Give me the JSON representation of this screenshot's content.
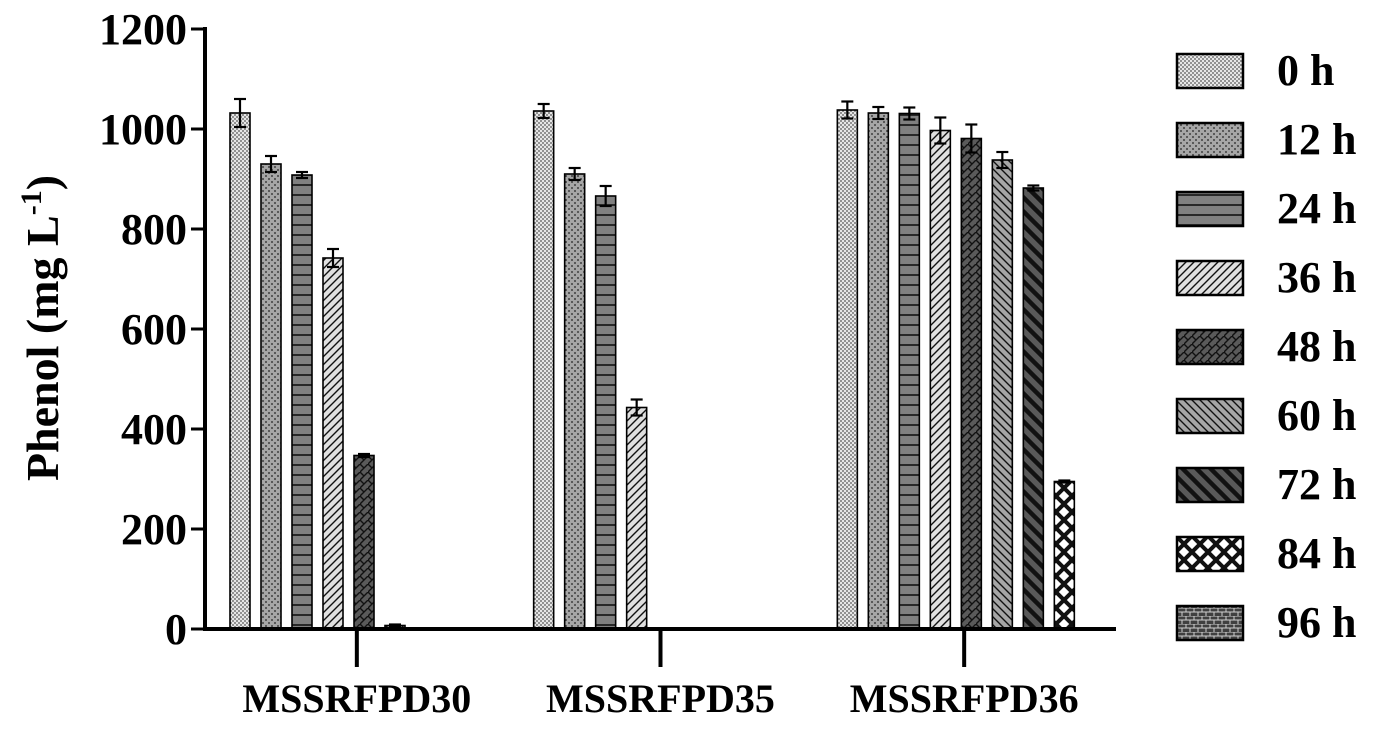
{
  "chart_data": {
    "type": "bar",
    "title": "",
    "xlabel": "",
    "ylabel": "Phenol (mg L",
    "ylabel_superscript": "-1",
    "ylabel_close": ")",
    "ylim": [
      0,
      1200
    ],
    "yticks": [
      "0",
      "200",
      "400",
      "600",
      "800",
      "1000",
      "1200"
    ],
    "grid": false,
    "legend_position": "right",
    "categories": [
      "MSSRFPD30",
      "MSSRFPD35",
      "MSSRFPD36"
    ],
    "series": [
      {
        "name": "0 h",
        "color": "#d9d9d9",
        "pattern": "dense-dots",
        "values": [
          1032,
          1036,
          1038
        ],
        "errors": [
          28,
          14,
          17
        ]
      },
      {
        "name": "12 h",
        "color": "#a6a6a6",
        "pattern": "sparse-dots",
        "values": [
          930,
          910,
          1032
        ],
        "errors": [
          16,
          12,
          12
        ]
      },
      {
        "name": "24 h",
        "color": "#808080",
        "pattern": "horizontal-lines",
        "values": [
          908,
          866,
          1031
        ],
        "errors": [
          6,
          20,
          12
        ]
      },
      {
        "name": "36 h",
        "color": "#d9d9d9",
        "pattern": "diagonal-up",
        "values": [
          742,
          443,
          997
        ],
        "errors": [
          18,
          16,
          26
        ]
      },
      {
        "name": "48 h",
        "color": "#595959",
        "pattern": "zigzag",
        "values": [
          347,
          0,
          981
        ],
        "errors": [
          3,
          0,
          28
        ]
      },
      {
        "name": "60 h",
        "color": "#a6a6a6",
        "pattern": "diagonal-down",
        "values": [
          7,
          0,
          938
        ],
        "errors": [
          2,
          0,
          16
        ]
      },
      {
        "name": "72 h",
        "color": "#595959",
        "pattern": "thick-diagonal-down",
        "values": [
          0,
          0,
          882
        ],
        "errors": [
          0,
          0,
          5
        ]
      },
      {
        "name": "84 h",
        "color": "#ffffff",
        "pattern": "crosshatch",
        "values": [
          0,
          0,
          295
        ],
        "errors": [
          0,
          0,
          2
        ]
      },
      {
        "name": "96 h",
        "color": "#404040",
        "pattern": "bricks",
        "values": [
          0,
          0,
          1
        ],
        "errors": [
          0,
          0,
          0
        ]
      }
    ]
  }
}
